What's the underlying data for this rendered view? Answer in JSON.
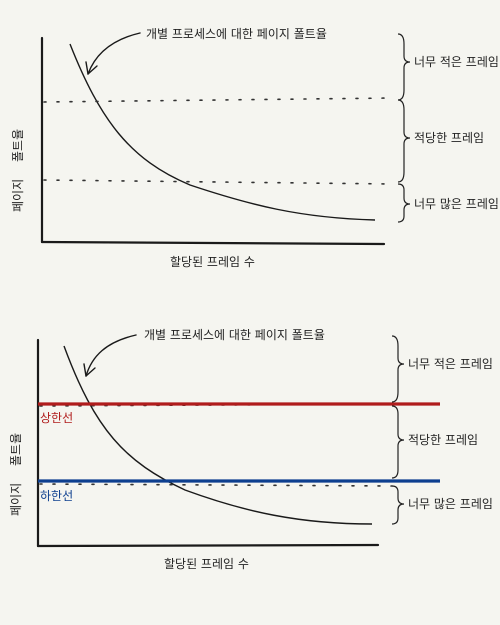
{
  "top": {
    "annotation": "개별 프로세스에 대한 페이지 폴트율",
    "xlabel": "할당된 프레임 수",
    "ylabel_bottom": "페이지",
    "ylabel_top": "폴트율",
    "zones": [
      "너무 적은 프레임",
      "적당한 프레임",
      "너무 많은 프레임"
    ]
  },
  "bottom": {
    "annotation": "개별 프로세스에 대한 페이지 폴트율",
    "xlabel": "할당된 프레임 수",
    "ylabel_bottom": "페이지",
    "ylabel_top": "폴트율",
    "zones": [
      "너무 적은 프레임",
      "적당한 프레임",
      "너무 많은 프레임"
    ],
    "upper_label": "상한선",
    "lower_label": "하한선",
    "colors": {
      "upper": "#b01c1c",
      "lower": "#0d3f8f"
    }
  }
}
